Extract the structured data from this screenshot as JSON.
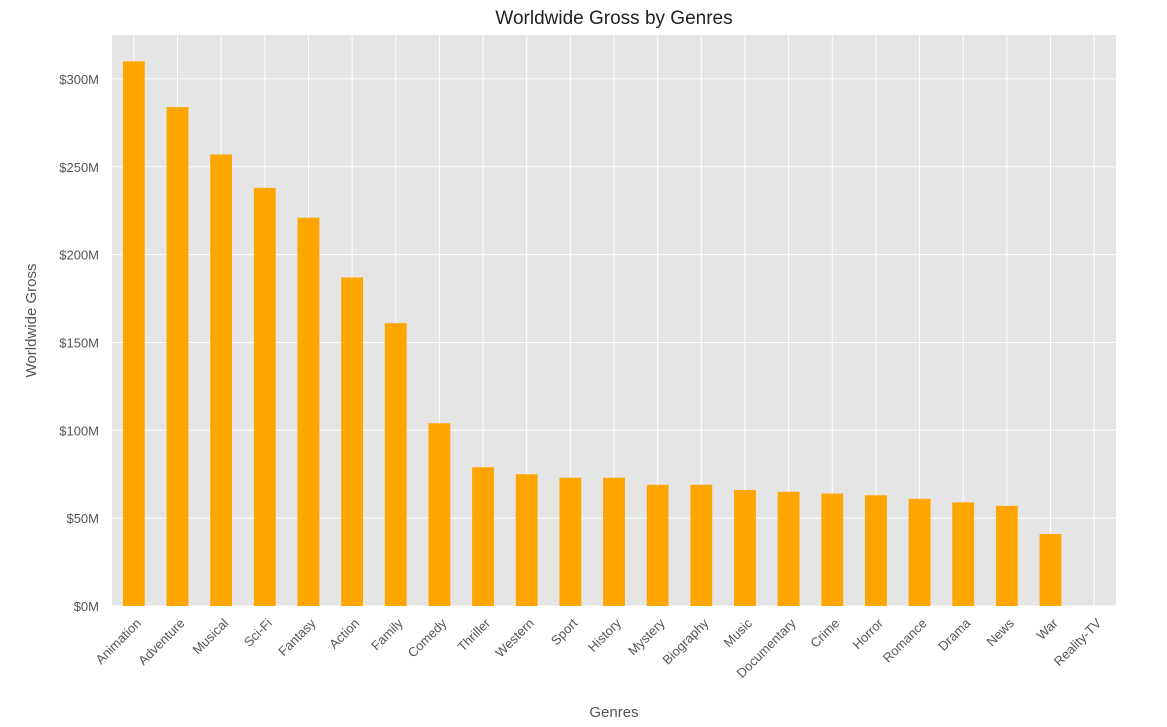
{
  "chart_data": {
    "type": "bar",
    "title": "Worldwide Gross by Genres",
    "xlabel": "Genres",
    "ylabel": "Worldwide Gross",
    "categories": [
      "Animation",
      "Adventure",
      "Musical",
      "Sci-Fi",
      "Fantasy",
      "Action",
      "Family",
      "Comedy",
      "Thriller",
      "Western",
      "Sport",
      "History",
      "Mystery",
      "Biography",
      "Music",
      "Documentary",
      "Crime",
      "Horror",
      "Romance",
      "Drama",
      "News",
      "War",
      "Reality-TV"
    ],
    "values": [
      310,
      284,
      257,
      238,
      221,
      187,
      161,
      104,
      79,
      75,
      73,
      73,
      69,
      69,
      66,
      65,
      64,
      63,
      61,
      59,
      57,
      41,
      0
    ],
    "value_unit": "$M",
    "yticks": [
      0,
      50,
      100,
      150,
      200,
      250,
      300
    ],
    "ytick_labels": [
      "$0M",
      "$50M",
      "$100M",
      "$150M",
      "$200M",
      "$250M",
      "$300M"
    ],
    "ylim": [
      0,
      325
    ],
    "grid": true,
    "legend": "none",
    "colors": {
      "bar": "#FFA500",
      "plot_background": "#E5E5E5",
      "grid": "#FFFFFF"
    }
  }
}
